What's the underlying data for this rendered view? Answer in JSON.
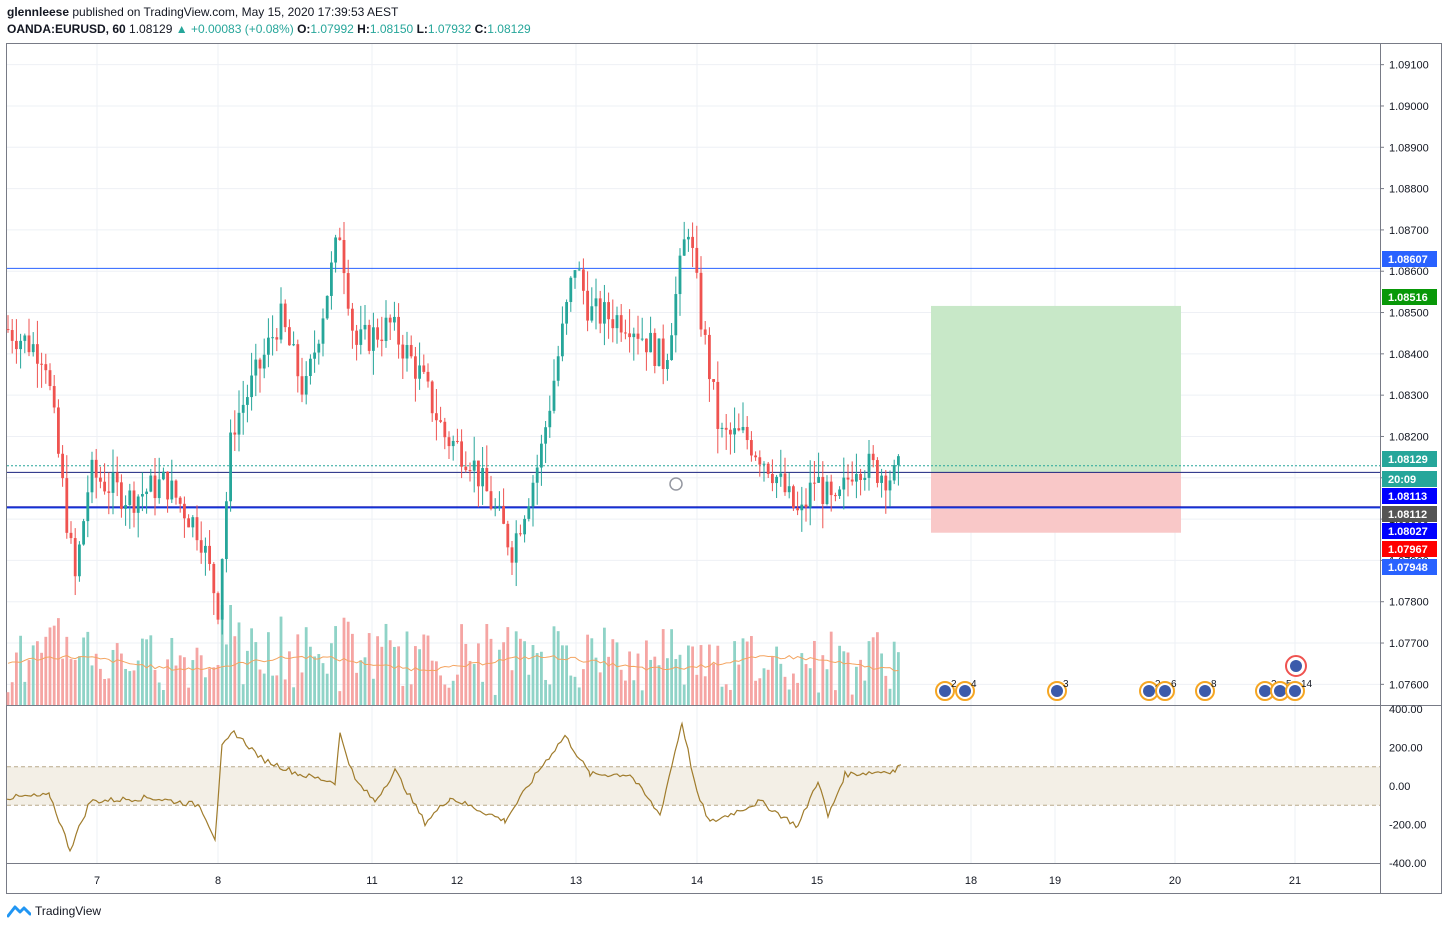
{
  "header": {
    "publisher": "glennleese",
    "published_text": "published on TradingView.com, May 15, 2020 17:39:53 AEST",
    "symbol": "OANDA:EURUSD, 60",
    "last": "1.08129",
    "change": "▲ +0.00083 (+0.08%)",
    "o_label": "O:",
    "o_value": "1.07992",
    "h_label": "H:",
    "h_value": "1.08150",
    "l_label": "L:",
    "l_value": "1.07932",
    "c_label": "C:",
    "c_value": "1.08129"
  },
  "footer": {
    "brand": "TradingView"
  },
  "colors": {
    "up": "#26a69a",
    "down": "#ef5350",
    "vol_up": "#8fd3c7",
    "vol_down": "#f5a5a3",
    "vol_ma": "#f4a460",
    "cci": "#a07c2c",
    "target_zone": "#c8e8c8",
    "stop_zone": "#f9c8c8",
    "hline": "#2962ff",
    "navy_line": "#0000aa"
  },
  "chart_data": {
    "type": "candlestick",
    "symbol": "OANDA:EURUSD",
    "interval": "60",
    "price_axis": {
      "ylim": [
        1.0755,
        1.0915
      ],
      "ticks": [
        "1.09100",
        "1.09000",
        "1.08900",
        "1.08800",
        "1.08700",
        "1.08600",
        "1.08500",
        "1.08400",
        "1.08300",
        "1.08200",
        "1.08100",
        "1.08000",
        "1.07900",
        "1.07800",
        "1.07700",
        "1.07600"
      ]
    },
    "time_axis": {
      "ticks": [
        "7",
        "8",
        "11",
        "12",
        "13",
        "14",
        "15",
        "18",
        "19",
        "20",
        "21"
      ]
    },
    "price_tags": [
      {
        "label": "1.08607",
        "color": "#2962ff"
      },
      {
        "label": "1.08516",
        "color": "#089808"
      },
      {
        "label": "1.08129",
        "color": "#26a69a"
      },
      {
        "label": "20:09",
        "color": "#26a69a"
      },
      {
        "label": "1.08113",
        "color": "#0000ff"
      },
      {
        "label": "1.08112",
        "color": "#555555"
      },
      {
        "label": "1.08027",
        "color": "#0000ff"
      },
      {
        "label": "1.07967",
        "color": "#ff0000"
      },
      {
        "label": "1.07948",
        "color": "#2962ff"
      }
    ],
    "horizontal_lines": [
      1.08607,
      1.08129,
      1.08113,
      1.08027
    ],
    "position_tool": {
      "entry": 1.08113,
      "target": 1.08516,
      "stop": 1.07967
    },
    "volume": {
      "ma_series": "Volume MA"
    },
    "cci": {
      "ylim": [
        -400,
        400
      ],
      "ticks": [
        "400.00",
        "200.00",
        "0.00",
        "-200.00",
        "-400.00"
      ],
      "band": [
        -100,
        100
      ]
    },
    "event_markers": [
      "2",
      "4",
      "3",
      "2",
      "6",
      "8",
      "2",
      "5",
      "14"
    ]
  }
}
